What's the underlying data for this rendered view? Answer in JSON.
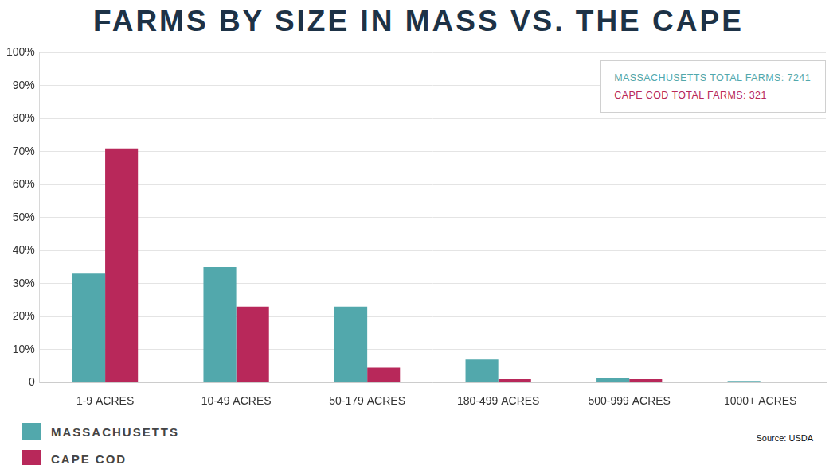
{
  "chart_data": {
    "type": "bar",
    "title": "FARMS BY SIZE IN MASS VS. THE CAPE",
    "categories": [
      "1-9 ACRES",
      "10-49 ACRES",
      "50-179 ACRES",
      "180-499 ACRES",
      "500-999 ACRES",
      "1000+ ACRES"
    ],
    "series": [
      {
        "name": "MASSACHUSETTS",
        "color": "#52a8ac",
        "values": [
          33,
          35,
          23,
          7,
          1.5,
          0.5
        ]
      },
      {
        "name": "CAPE COD",
        "color": "#b8285a",
        "values": [
          71,
          23,
          4.5,
          1,
          1,
          0
        ]
      }
    ],
    "annotations": [
      "MASSACHUSETTS TOTAL FARMS: 7241",
      "CAPE COD TOTAL FARMS: 321"
    ],
    "source": "Source: USDA",
    "ylim": [
      0,
      100
    ],
    "yticks": [
      0,
      {
        "value": 10,
        "label": "10%"
      },
      {
        "value": 20,
        "label": "20%"
      },
      {
        "value": 30,
        "label": "30%"
      },
      {
        "value": 40,
        "label": "40%"
      },
      {
        "value": 50,
        "label": "50%"
      },
      {
        "value": 60,
        "label": "60%"
      },
      {
        "value": 70,
        "label": "70%"
      },
      {
        "value": 80,
        "label": "80%"
      },
      {
        "value": 90,
        "label": "90%"
      },
      {
        "value": 100,
        "label": "100%"
      }
    ],
    "grid": true,
    "legend": "bottom-left"
  }
}
